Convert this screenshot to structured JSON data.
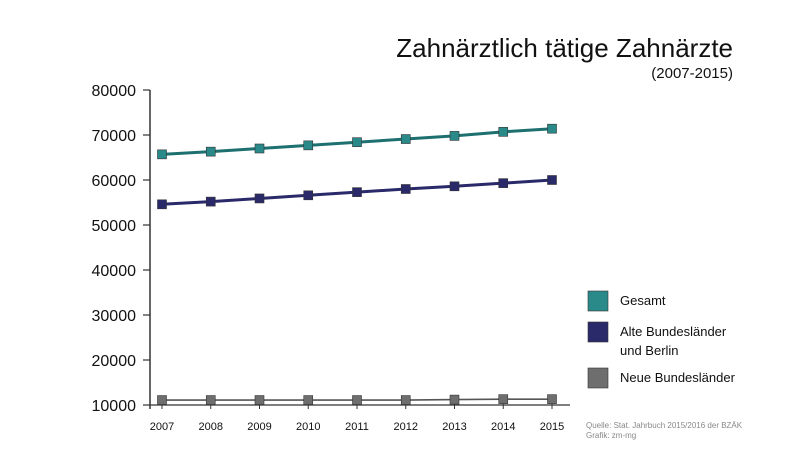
{
  "chart_data": {
    "type": "line",
    "title": "Zahnärztlich tätige Zahnärzte",
    "subtitle": "(2007-2015)",
    "x": [
      "2007",
      "2008",
      "2009",
      "2010",
      "2011",
      "2012",
      "2013",
      "2014",
      "2015"
    ],
    "yticks": [
      "80000",
      "70000",
      "60000",
      "50000",
      "40000",
      "30000",
      "20000",
      "10000"
    ],
    "ylim": [
      10000,
      80000
    ],
    "grid": false,
    "legend_position": "right",
    "series": [
      {
        "name": "Gesamt",
        "color": "#1e6f6f",
        "marker_color": "#2a8a8a",
        "values": [
          65700,
          66300,
          67000,
          67700,
          68400,
          69100,
          69800,
          70700,
          71400
        ]
      },
      {
        "name": "Alte Bundesländer und Berlin",
        "name_lines": [
          "Alte Bundesländer",
          "und Berlin"
        ],
        "color": "#2a2a6a",
        "marker_color": "#2a2a6a",
        "values": [
          54600,
          55200,
          55900,
          56600,
          57300,
          58000,
          58600,
          59300,
          60000
        ]
      },
      {
        "name": "Neue Bundesländer",
        "color": "#555555",
        "marker_color": "#6e6e6e",
        "values": [
          11100,
          11100,
          11100,
          11100,
          11100,
          11100,
          11200,
          11300,
          11300
        ]
      }
    ],
    "source_lines": [
      "Quelle: Stat. Jahrbuch 2015/2016 der BZÄK",
      "Grafik: zm-mg"
    ]
  }
}
